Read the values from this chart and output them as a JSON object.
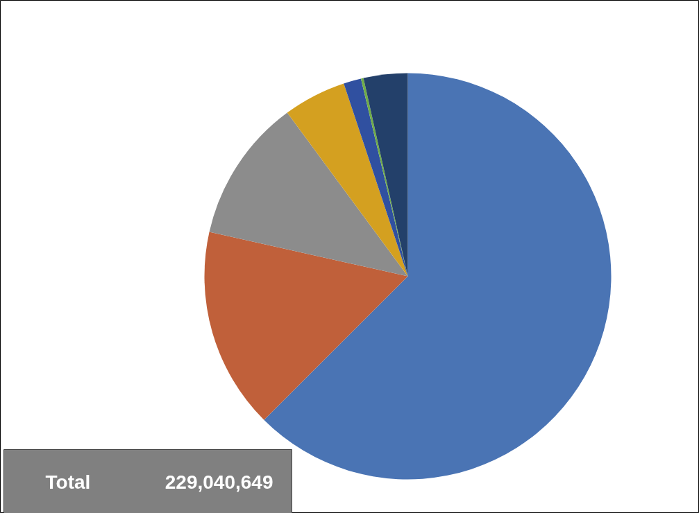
{
  "chart_data": {
    "type": "pie",
    "categories": [
      null,
      null,
      null,
      null,
      null,
      null,
      null
    ],
    "values": [
      62.5,
      16,
      11.4,
      5,
      1.4,
      0.2,
      3.5
    ],
    "colors": [
      "#4a74b4",
      "#c0603a",
      "#8c8c8c",
      "#d4a020",
      "#3050a0",
      "#70ad47",
      "#23406a"
    ],
    "annotations": [
      "Total",
      "229,040,649"
    ]
  }
}
